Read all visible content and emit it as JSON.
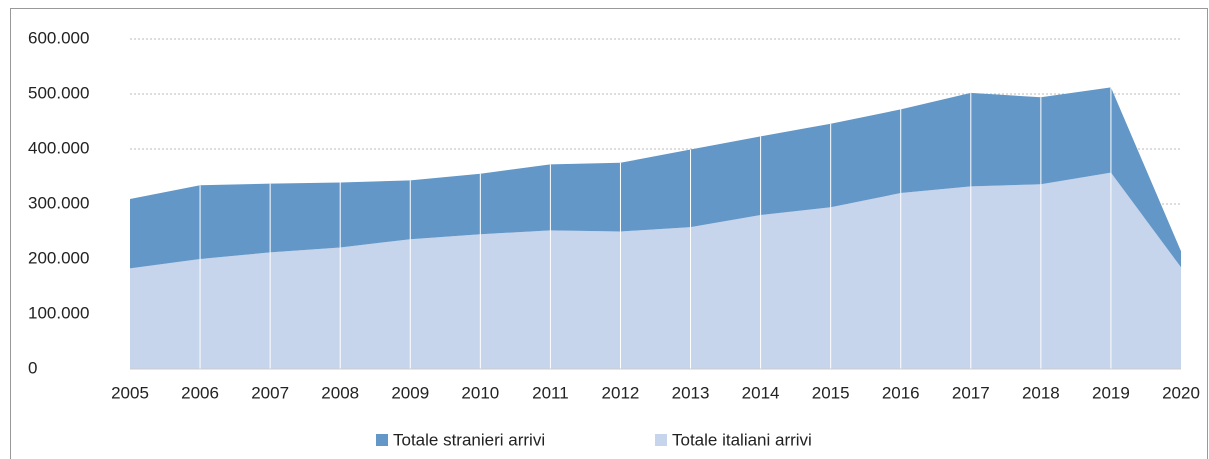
{
  "chart_data": {
    "type": "stacked_area",
    "categories": [
      "2005",
      "2006",
      "2007",
      "2008",
      "2009",
      "2010",
      "2011",
      "2012",
      "2013",
      "2014",
      "2015",
      "2016",
      "2017",
      "2018",
      "2019",
      "2020"
    ],
    "series": [
      {
        "name": "Totale stranieri arrivi",
        "color": "#6397c8",
        "values": [
          126000,
          134000,
          125000,
          118000,
          107000,
          110000,
          120000,
          125000,
          141000,
          143000,
          152000,
          152000,
          170000,
          158000,
          155000,
          29000
        ]
      },
      {
        "name": "Totale italiani arrivi",
        "color": "#c6d4ec",
        "values": [
          183000,
          200000,
          212000,
          221000,
          236000,
          245000,
          252000,
          250000,
          258000,
          280000,
          294000,
          320000,
          332000,
          336000,
          357000,
          185000
        ]
      }
    ],
    "ylim": [
      0,
      600000
    ],
    "yticks": [
      0,
      {
        "value": 100000,
        "label": "100.000"
      },
      {
        "value": 200000,
        "label": "200.000"
      },
      {
        "value": 300000,
        "label": "300.000"
      },
      {
        "value": 400000,
        "label": "400.000"
      },
      {
        "value": 500000,
        "label": "500.000"
      },
      {
        "value": 600000,
        "label": "600.000"
      }
    ],
    "grid": true,
    "legend": "bottom"
  }
}
